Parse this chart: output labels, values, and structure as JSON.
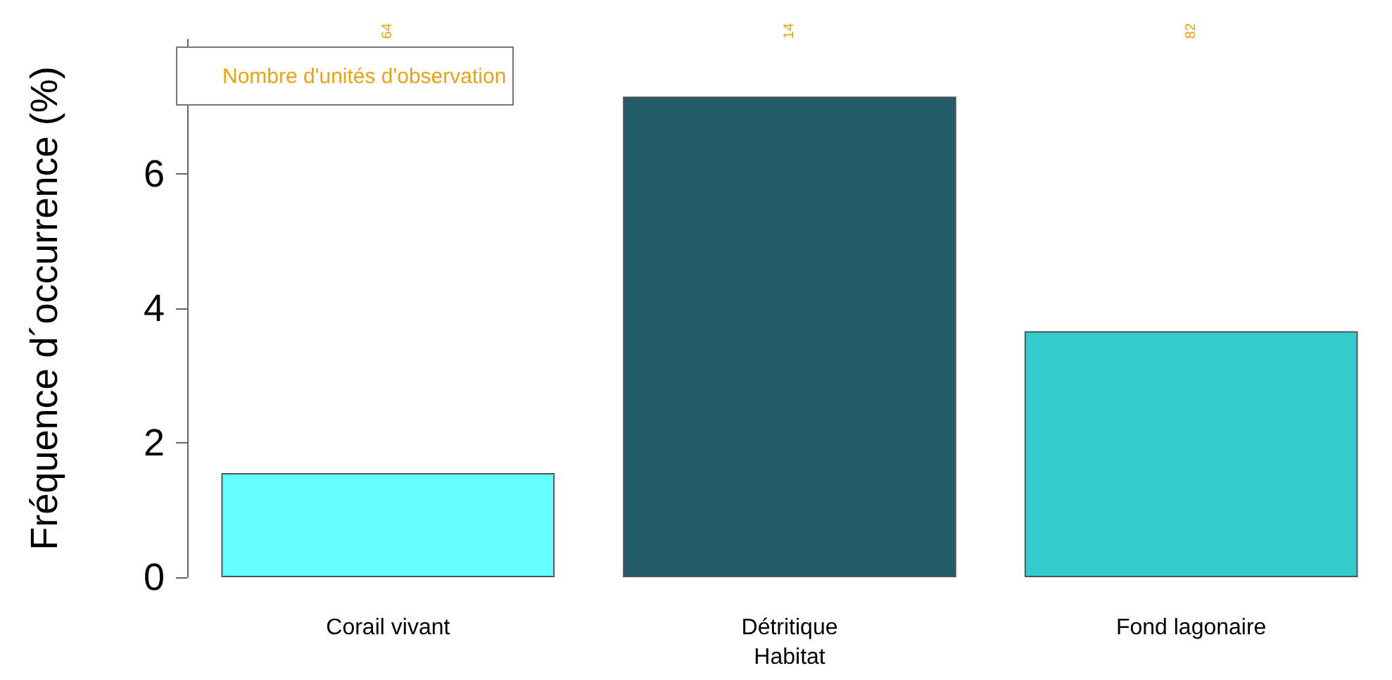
{
  "chart_data": {
    "type": "bar",
    "xlabel": "Habitat",
    "ylabel": "Fréquence d´occurrence (%)",
    "categories": [
      "Corail vivant",
      "Détritique",
      "Fond lagonaire"
    ],
    "values": [
      1.55,
      7.15,
      3.66
    ],
    "colors": [
      "#66ffff",
      "#225a68",
      "#33cccc"
    ],
    "ylim": [
      0,
      8
    ],
    "yticks": [
      0,
      2,
      4,
      6
    ],
    "grid": false,
    "legend_title": "Nombre d'unités d'observation",
    "annotations": [
      "64",
      "14",
      "82"
    ]
  }
}
